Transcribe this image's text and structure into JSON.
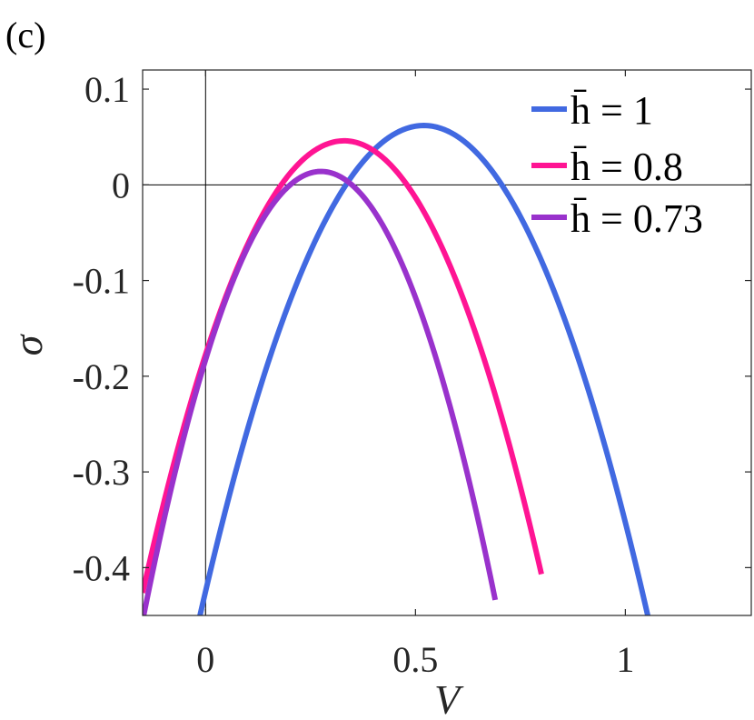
{
  "panel_label": "(c)",
  "chart_data": {
    "type": "line",
    "xlabel": "V",
    "ylabel": "σ",
    "xlim": [
      -0.15,
      1.3
    ],
    "ylim": [
      -0.45,
      0.12
    ],
    "x_ticks": [
      0,
      0.5,
      1
    ],
    "x_tick_labels": [
      "0",
      "0.5",
      "1"
    ],
    "y_ticks": [
      0.1,
      0,
      -0.1,
      -0.2,
      -0.3,
      -0.4
    ],
    "y_tick_labels": [
      "0.1",
      "0",
      "-0.1",
      "-0.2",
      "-0.3",
      "-0.4"
    ],
    "grid": false,
    "reference_lines": {
      "x": 0,
      "y": 0
    },
    "legend_position": "top-right",
    "series": [
      {
        "name": "h̄ = 1",
        "color": "#4169E1",
        "x_range": [
          -0.04,
          1.08
        ],
        "peak_x": 0.52,
        "peak_y": 0.062,
        "curvature": 1.8
      },
      {
        "name": "h̄ = 0.8",
        "color": "#FF1493",
        "x_range": [
          -0.15,
          0.8
        ],
        "peak_x": 0.33,
        "peak_y": 0.046,
        "curvature": 2.05
      },
      {
        "name": "h̄ = 0.73",
        "color": "#9932CC",
        "x_range": [
          -0.15,
          0.69
        ],
        "peak_x": 0.275,
        "peak_y": 0.014,
        "curvature": 2.6
      }
    ]
  }
}
